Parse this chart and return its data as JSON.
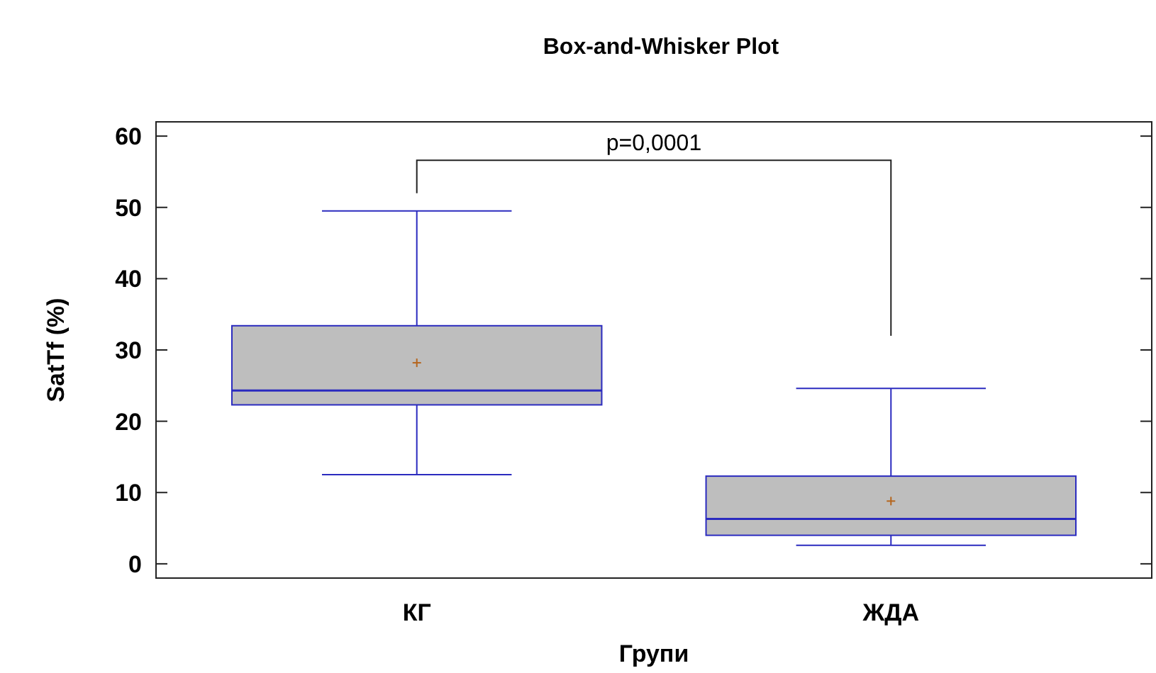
{
  "chart_data": {
    "type": "box",
    "title": "Box-and-Whisker Plot",
    "xlabel": "Групи",
    "ylabel": "SatTf (%)",
    "categories": [
      "КГ",
      "ЖДА"
    ],
    "boxes": [
      {
        "low": 12.5,
        "q1": 22.3,
        "median": 24.3,
        "q3": 33.4,
        "high": 49.5,
        "mean": 28.2
      },
      {
        "low": 2.6,
        "q1": 4.0,
        "median": 6.3,
        "q3": 12.3,
        "high": 24.6,
        "mean": 8.8
      }
    ],
    "color": "#bebebe",
    "ylim": [
      -2,
      62
    ],
    "yticks": [
      0,
      10,
      20,
      30,
      40,
      50,
      60
    ],
    "annotations": [
      "p=0,0001"
    ]
  }
}
